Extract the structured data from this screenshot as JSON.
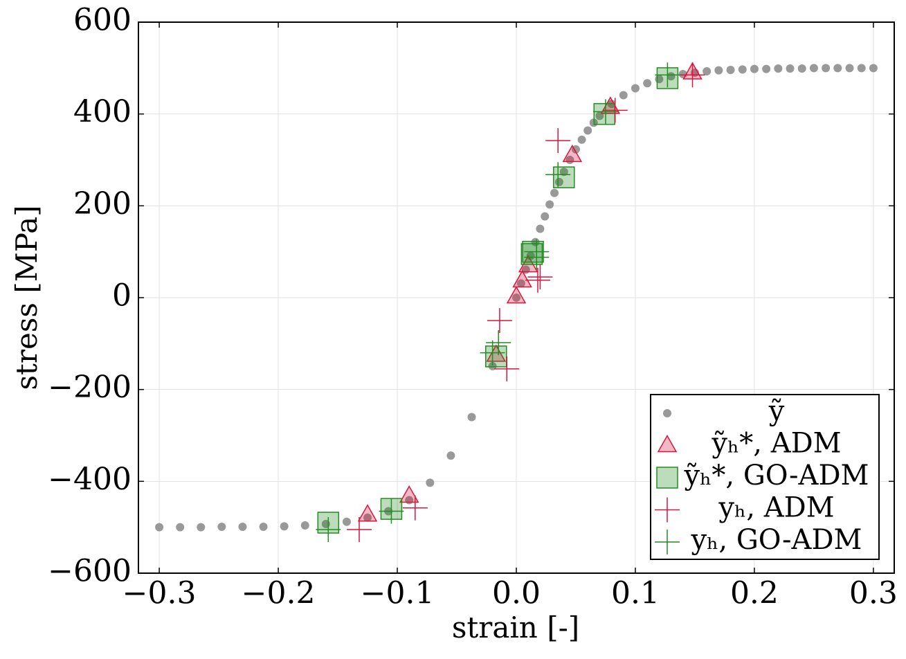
{
  "chart_data": {
    "type": "scatter",
    "xlabel": "strain [-]",
    "ylabel": "stress [MPa]",
    "xlim": [
      -0.3175,
      0.3175
    ],
    "ylim": [
      -600,
      600
    ],
    "xticks": [
      {
        "value": -0.3,
        "label": "−0.3"
      },
      {
        "value": -0.2,
        "label": "−0.2"
      },
      {
        "value": -0.1,
        "label": "−0.1"
      },
      {
        "value": 0,
        "label": "0.0"
      },
      {
        "value": 0.1,
        "label": "0.1"
      },
      {
        "value": 0.2,
        "label": "0.2"
      },
      {
        "value": 0.3,
        "label": "0.3"
      }
    ],
    "yticks": [
      {
        "value": -600,
        "label": "−600"
      },
      {
        "value": -400,
        "label": "−400"
      },
      {
        "value": -200,
        "label": "−200"
      },
      0,
      200,
      400,
      600
    ],
    "grid": true,
    "legend": "lower right",
    "series": [
      {
        "name": "ỹ",
        "color": "#999999",
        "marker": "circle",
        "x": [
          -0.3,
          -0.2825,
          -0.265,
          -0.2475,
          -0.23,
          -0.2125,
          -0.195,
          -0.1775,
          -0.16,
          -0.1425,
          -0.125,
          -0.1075,
          -0.09,
          -0.0725,
          -0.055,
          -0.0375,
          -0.02,
          0,
          0.004,
          0.008,
          0.012,
          0.016,
          0.02,
          0.024,
          0.028,
          0.032,
          0.036,
          0.04,
          0.045,
          0.05,
          0.055,
          0.06,
          0.065,
          0.07,
          0.08,
          0.09,
          0.1,
          0.11,
          0.12,
          0.13,
          0.14,
          0.15,
          0.16,
          0.17,
          0.18,
          0.19,
          0.2,
          0.21,
          0.22,
          0.23,
          0.24,
          0.25,
          0.26,
          0.27,
          0.28,
          0.29,
          0.3
        ],
        "values": [
          -500,
          -500,
          -500,
          -499,
          -499,
          -499,
          -498,
          -496,
          -493,
          -488,
          -479,
          -465,
          -441,
          -403,
          -344,
          -260,
          -149,
          0,
          31,
          61,
          91,
          121,
          150,
          177,
          203,
          228,
          252,
          274,
          300,
          323,
          344,
          364,
          381,
          396,
          422,
          441,
          456,
          467,
          476,
          482,
          487,
          490,
          493,
          495,
          496,
          497,
          498,
          498,
          499,
          499,
          499,
          500,
          500,
          500,
          500,
          500,
          500
        ]
      },
      {
        "name": "ỹₕ*, ADM",
        "color": "#dc143c",
        "marker": "triangle",
        "x": [
          -0.125,
          -0.09,
          -0.017,
          0,
          0.005,
          0.01,
          0.047,
          0.079,
          0.148
        ],
        "values": [
          -473,
          -432,
          -125,
          2,
          37,
          70,
          310,
          415,
          490
        ]
      },
      {
        "name": "ỹₕ*, GO-ADM",
        "color": "#228b22",
        "marker": "square",
        "x": [
          -0.158,
          -0.105,
          -0.017,
          0.013,
          0.014,
          0.04,
          0.074,
          0.127
        ],
        "values": [
          -490,
          -460,
          -128,
          95,
          100,
          262,
          400,
          478
        ]
      },
      {
        "name": "yₕ, ADM",
        "color": "#dc143c",
        "marker": "plus",
        "x": [
          -0.132,
          -0.085,
          -0.008,
          -0.014,
          0.018,
          0.02,
          0.035,
          0.083,
          0.148
        ],
        "values": [
          -505,
          -458,
          -155,
          -50,
          38,
          45,
          342,
          408,
          485
        ]
      },
      {
        "name": "yₕ, GO-ADM",
        "color": "#228b22",
        "marker": "plus",
        "x": [
          -0.158,
          -0.105,
          -0.02,
          -0.015,
          0.017,
          0.017,
          0.035,
          0.075,
          0.127
        ],
        "values": [
          -505,
          -465,
          -120,
          -98,
          100,
          88,
          268,
          405,
          485
        ]
      }
    ]
  }
}
